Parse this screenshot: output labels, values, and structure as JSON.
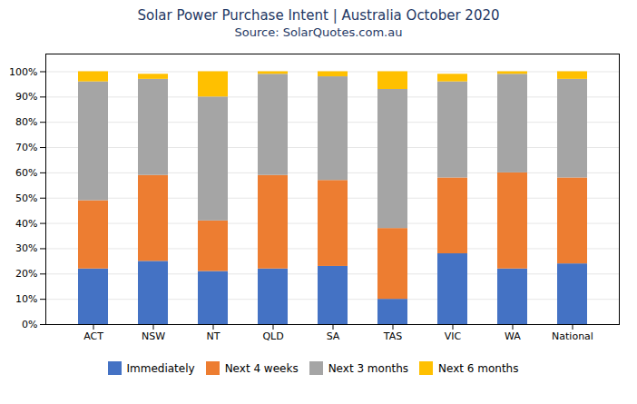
{
  "chart_data": {
    "type": "bar",
    "stacked": true,
    "title": "Solar Power Purchase Intent | Australia October 2020",
    "subtitle": "Source: SolarQuotes.com.au",
    "categories": [
      "ACT",
      "NSW",
      "NT",
      "QLD",
      "SA",
      "TAS",
      "VIC",
      "WA",
      "National"
    ],
    "series": [
      {
        "name": "Immediately",
        "color": "#4472C4",
        "values": [
          22,
          25,
          21,
          22,
          23,
          10,
          28,
          22,
          24
        ]
      },
      {
        "name": "Next 4 weeks",
        "color": "#ED7D31",
        "values": [
          27,
          34,
          20,
          37,
          34,
          28,
          30,
          38,
          34
        ]
      },
      {
        "name": "Next 3 months",
        "color": "#A5A5A5",
        "values": [
          47,
          38,
          49,
          40,
          41,
          55,
          38,
          39,
          39
        ]
      },
      {
        "name": "Next 6 months",
        "color": "#FFC000",
        "values": [
          4,
          2,
          10,
          1,
          2,
          7,
          3,
          1,
          3
        ]
      }
    ],
    "ylim": [
      0,
      107
    ],
    "yticks": [
      {
        "value": 0,
        "label": "0%"
      },
      {
        "value": 10,
        "label": "10%"
      },
      {
        "value": 20,
        "label": "20%"
      },
      {
        "value": 30,
        "label": "30%"
      },
      {
        "value": 40,
        "label": "40%"
      },
      {
        "value": 50,
        "label": "50%"
      },
      {
        "value": 60,
        "label": "60%"
      },
      {
        "value": 70,
        "label": "70%"
      },
      {
        "value": 80,
        "label": "80%"
      },
      {
        "value": 90,
        "label": "90%"
      },
      {
        "value": 100,
        "label": "100%"
      }
    ],
    "grid": true,
    "legend": "bottom"
  }
}
